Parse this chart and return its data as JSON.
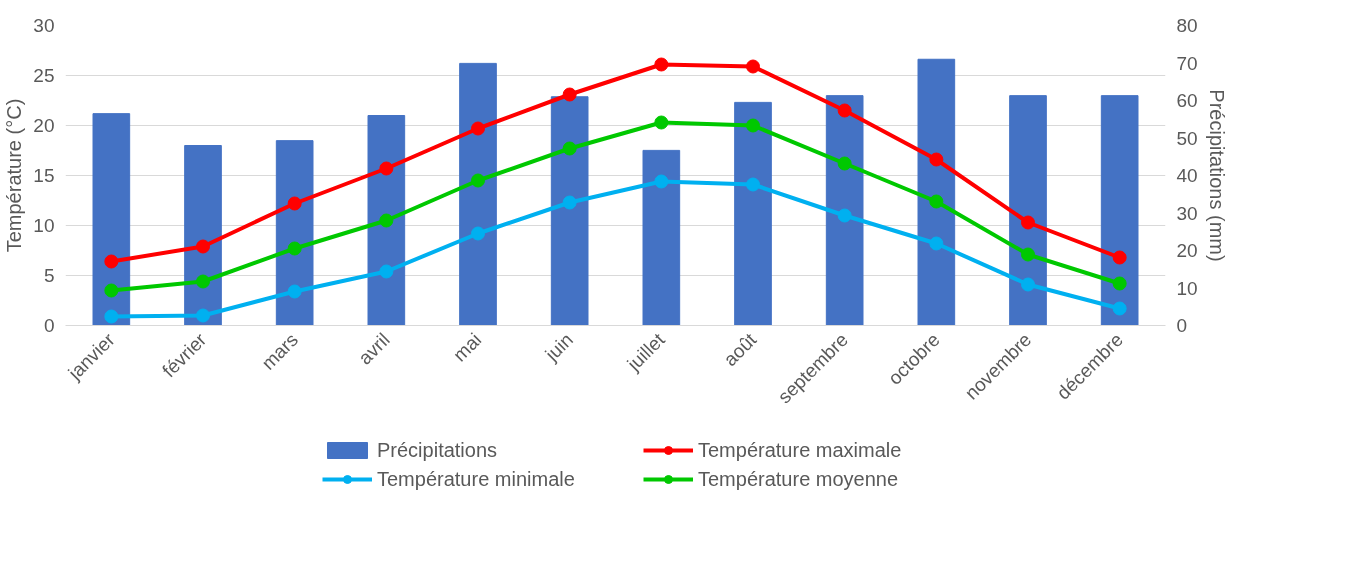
{
  "chart_data": {
    "type": "bar",
    "ylabel": "Température (°C)",
    "y2label": "Précipitations (mm)",
    "categories": [
      "janvier",
      "février",
      "mars",
      "avril",
      "mai",
      "juin",
      "juillet",
      "août",
      "septembre",
      "octobre",
      "novembre",
      "décembre"
    ],
    "ylim": [
      0,
      30
    ],
    "yticks": [
      0,
      5,
      10,
      15,
      20,
      25,
      30
    ],
    "y2lim": [
      0,
      80
    ],
    "y2ticks": [
      0,
      10,
      20,
      30,
      40,
      50,
      60,
      70,
      80
    ],
    "grid": "y",
    "legend": "bottom",
    "marker": "circle",
    "line_style": "solid",
    "series": [
      {
        "name": "Précipitations",
        "axis": "y2",
        "color": "#4472c4",
        "values": [
          56.5,
          48,
          49.3,
          56,
          69.9,
          61,
          46.7,
          59.5,
          61.3,
          71,
          61.3,
          61.3
        ]
      },
      {
        "name": "Température maximale",
        "type": "line",
        "color": "#ff0000",
        "values": [
          6.4,
          7.9,
          12.2,
          15.7,
          19.7,
          23.1,
          26.1,
          25.9,
          21.5,
          16.6,
          10.3,
          6.8
        ]
      },
      {
        "name": "Température minimale",
        "type": "line",
        "color": "#00b0f0",
        "values": [
          0.9,
          1.0,
          3.4,
          5.4,
          9.2,
          12.3,
          14.4,
          14.1,
          11.0,
          8.2,
          4.1,
          1.7
        ]
      },
      {
        "name": "Température moyenne",
        "type": "line",
        "color": "#00c800",
        "values": [
          3.5,
          4.4,
          7.7,
          10.5,
          14.5,
          17.7,
          20.3,
          20.0,
          16.2,
          12.4,
          7.1,
          4.2
        ]
      }
    ]
  }
}
